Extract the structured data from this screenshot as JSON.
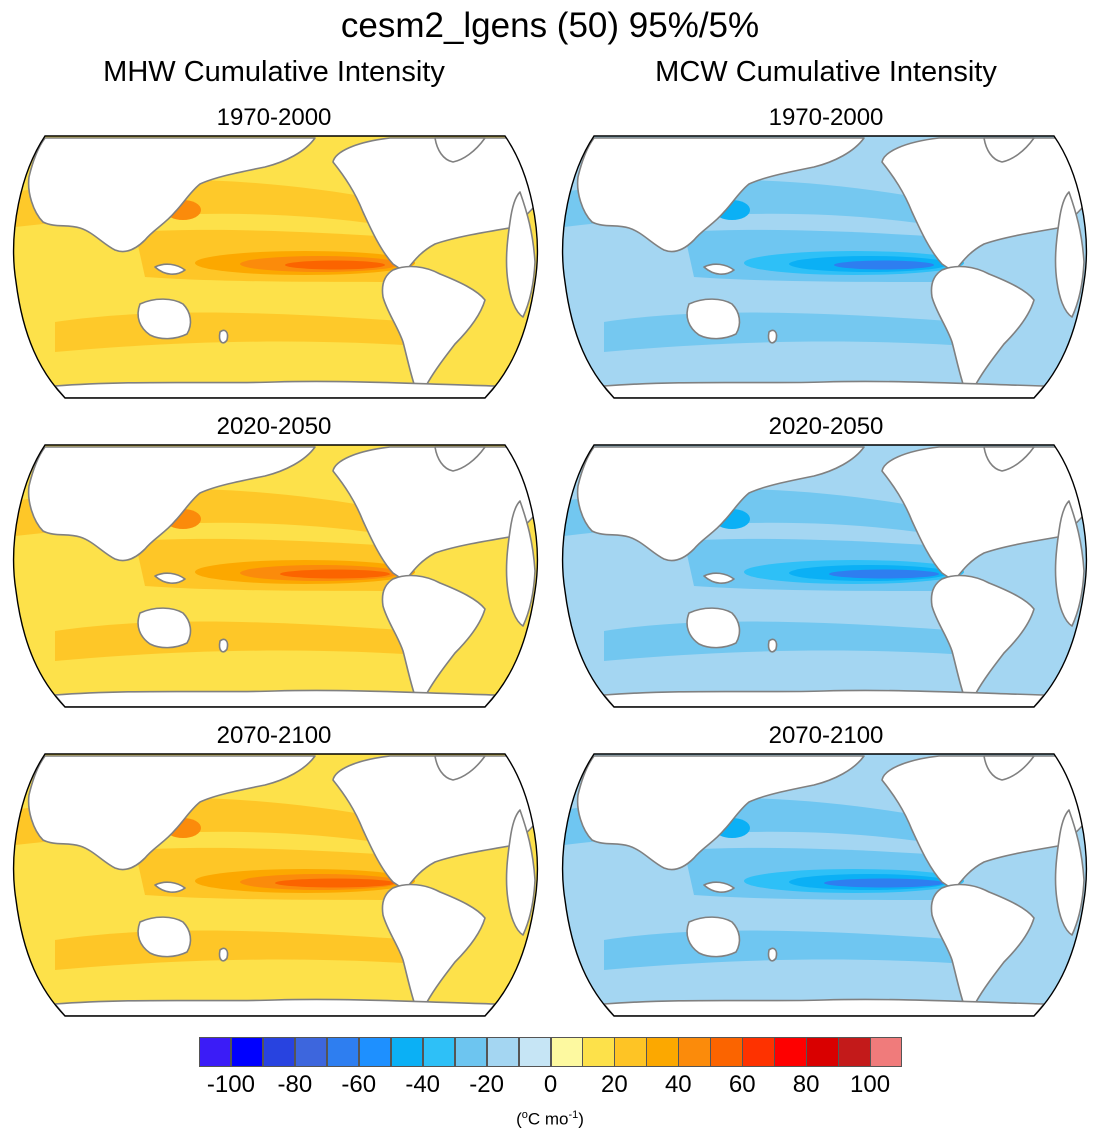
{
  "title": "cesm2_lgens (50) 95%/5%",
  "columns": [
    {
      "id": "mhw",
      "title": "MHW Cumulative Intensity"
    },
    {
      "id": "mcw",
      "title": "MCW Cumulative Intensity"
    }
  ],
  "periods": [
    "1970-2000",
    "2020-2050",
    "2070-2100"
  ],
  "colorbar": {
    "colors": [
      "#3b1cf7",
      "#0000ff",
      "#2843e0",
      "#3d66dd",
      "#2e7ef0",
      "#1e90ff",
      "#0bb0f5",
      "#2ec0f7",
      "#6dc5f0",
      "#a4d6f2",
      "#c6e5f5",
      "#fdf9a0",
      "#fde14a",
      "#fec425",
      "#fca800",
      "#fb8b0b",
      "#fb6400",
      "#fe3200",
      "#fe0000",
      "#d90000",
      "#c31a1a",
      "#f07b7b"
    ],
    "tick_labels": [
      "-100",
      "-80",
      "-60",
      "-40",
      "-20",
      "0",
      "20",
      "40",
      "60",
      "80",
      "100"
    ],
    "units_prefix": "(",
    "units_deg": "o",
    "units_mid": "C mo",
    "units_sup": "-1",
    "units_suffix": ")"
  },
  "palette": {
    "mhw": {
      "base": "#fde14a",
      "mid": "#fec425",
      "high": "#fca800",
      "higher": "#fb8b0b",
      "peak": "#fb6400",
      "max": "#fe3200"
    },
    "mcw": {
      "base": "#a4d6f2",
      "mid": "#6dc5f0",
      "high": "#2ec0f7",
      "higher": "#0bb0f5",
      "peak": "#2e7ef0",
      "max": "#3d66dd"
    },
    "land": "#ffffff",
    "coast": "#808080"
  }
}
